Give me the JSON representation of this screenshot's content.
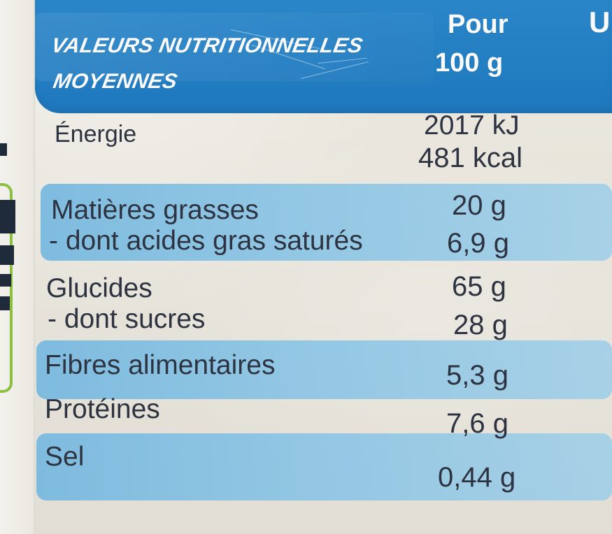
{
  "header": {
    "title_line_1": "VALEURS NUTRITIONNELLES",
    "title_line_2": "MOYENNES",
    "per_line_1": "Pour",
    "per_line_2": "100 g",
    "edge_letter": "U"
  },
  "nutrition": {
    "energy": {
      "label": "Énergie",
      "value_kj": "2017 kJ",
      "value_kcal": "481 kcal"
    },
    "fat": {
      "label": "Matières grasses",
      "value": "20 g"
    },
    "saturated_fat": {
      "label": "- dont acides gras saturés",
      "value": "6,9 g"
    },
    "carbohydrates": {
      "label": "Glucides",
      "value": "65 g"
    },
    "sugars": {
      "label": "- dont sucres",
      "value": "28 g"
    },
    "fibre": {
      "label": "Fibres alimentaires",
      "value": "5,3 g"
    },
    "protein": {
      "label": "Protéines",
      "value": "7,6 g"
    },
    "salt": {
      "label": "Sel",
      "value": "0,44 g"
    }
  },
  "colors": {
    "header_blue": "#1f78bd",
    "band_blue": "#84c2e5",
    "text_dark": "#2d3340",
    "paper": "#e9e6dd",
    "side_green": "#8cbf3f"
  }
}
